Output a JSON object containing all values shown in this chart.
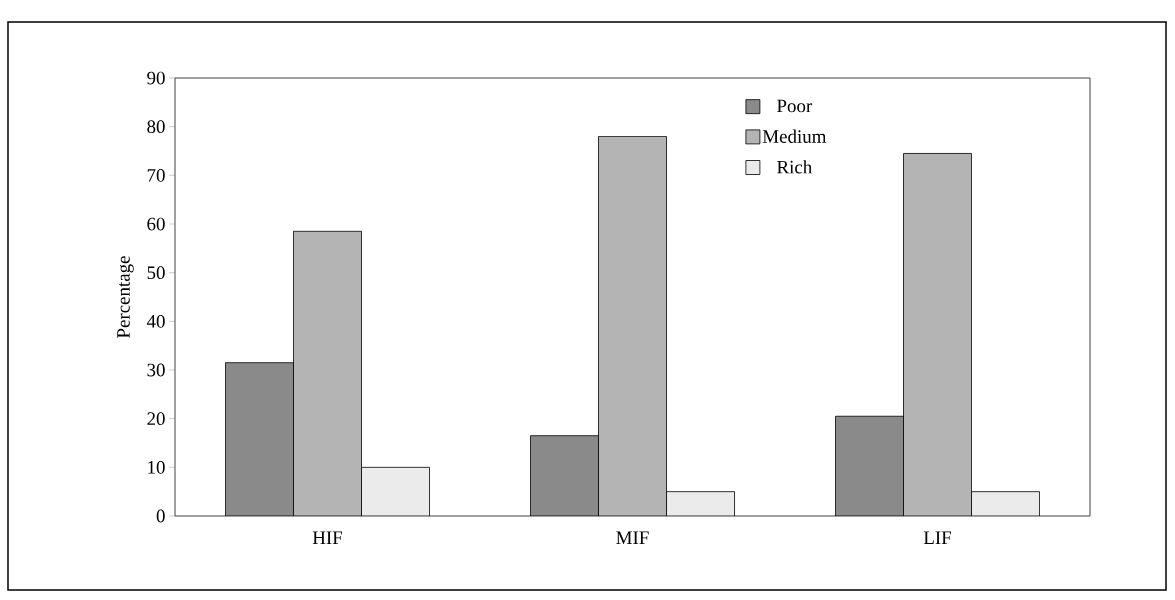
{
  "chart_data": {
    "type": "bar",
    "ylabel": "Percentage",
    "categories": [
      "HIF",
      "MIF",
      "LIF"
    ],
    "series": [
      {
        "name": "Poor",
        "color": "#8a8a8a",
        "values": [
          31.5,
          16.5,
          20.5
        ]
      },
      {
        "name": "Medium",
        "color": "#b4b4b4",
        "values": [
          58.5,
          78,
          74.5
        ]
      },
      {
        "name": "Rich",
        "color": "#ebebeb",
        "values": [
          10,
          5,
          5
        ]
      }
    ],
    "ylim": [
      0,
      90
    ],
    "yticks": [
      0,
      10,
      20,
      30,
      40,
      50,
      60,
      70,
      80,
      90
    ],
    "grid": false,
    "legend": "top right"
  }
}
